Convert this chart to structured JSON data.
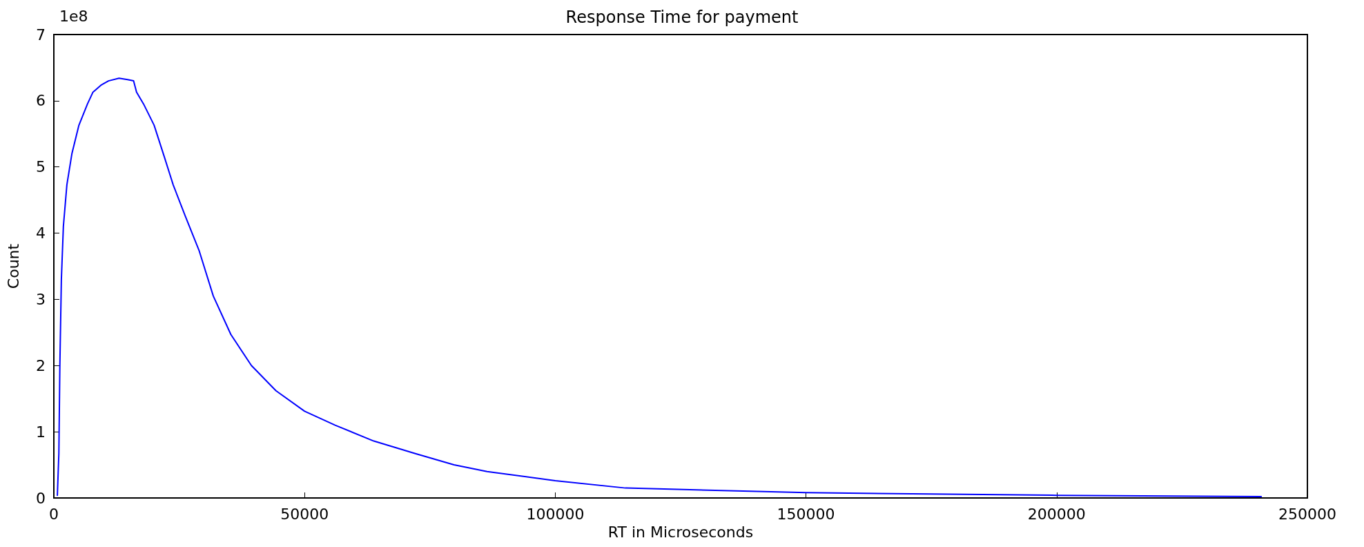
{
  "chart_data": {
    "type": "line",
    "title": "Response Time for payment",
    "xlabel": "RT in Microseconds",
    "ylabel": "Count",
    "annotations": [
      "1e8"
    ],
    "series": [
      {
        "color": "#0000ff",
        "x": [
          700,
          1000,
          1200,
          1500,
          1900,
          2600,
          3600,
          5000,
          6700,
          7800,
          9500,
          10900,
          13000,
          14700,
          15900,
          16500,
          17900,
          20000,
          22000,
          23800,
          26200,
          29000,
          31800,
          35300,
          39400,
          44300,
          50000,
          56100,
          63800,
          72100,
          79800,
          86400,
          100000,
          114000,
          150000,
          200000,
          240800
        ],
        "values": [
          0.04,
          0.67,
          2.0,
          3.3,
          4.1,
          4.73,
          5.2,
          5.63,
          5.95,
          6.13,
          6.24,
          6.3,
          6.34,
          6.32,
          6.3,
          6.13,
          5.95,
          5.63,
          5.16,
          4.73,
          4.26,
          3.73,
          3.05,
          2.47,
          2.0,
          1.62,
          1.31,
          1.1,
          0.86,
          0.67,
          0.5,
          0.4,
          0.26,
          0.15,
          0.08,
          0.04,
          0.02
        ]
      }
    ],
    "xlim": [
      0,
      250000
    ],
    "xticks": [
      0,
      50000,
      100000,
      150000,
      200000,
      250000
    ],
    "ylim": [
      0,
      7
    ],
    "yticks": [
      0,
      1,
      2,
      3,
      4,
      5,
      6,
      7
    ],
    "grid": false,
    "marker": "none",
    "line_style": "solid"
  }
}
